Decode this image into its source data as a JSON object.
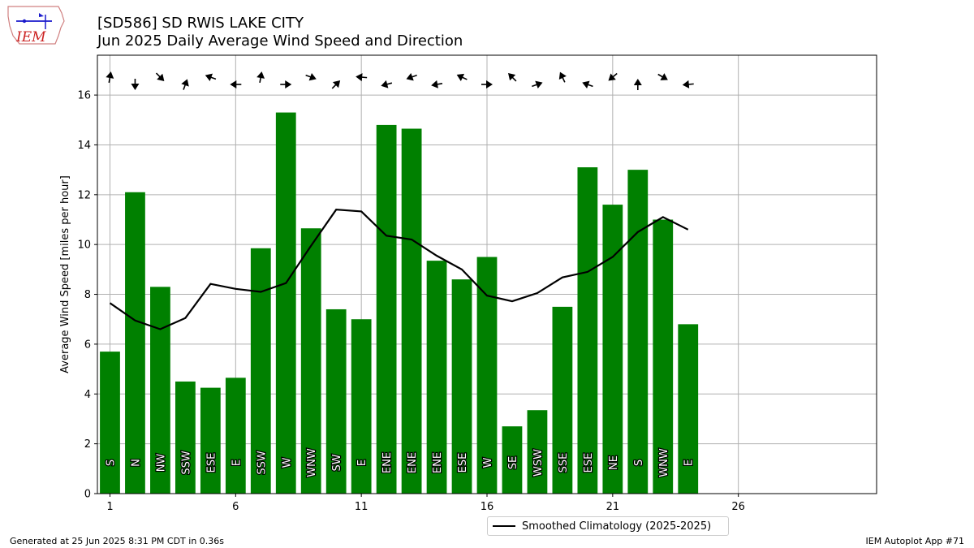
{
  "header": {
    "title_line1": "[SD586] SD RWIS LAKE CITY",
    "title_line2": "Jun 2025 Daily Average Wind Speed and Direction"
  },
  "logo": {
    "text": "IEM"
  },
  "footer": {
    "left": "Generated at 25 Jun 2025 8:31 PM CDT in 0.36s",
    "right": "IEM Autoplot App #71"
  },
  "legend": {
    "label": "Smoothed Climatology (2025-2025)"
  },
  "colors": {
    "bar": "#008000",
    "climatology": "#000000",
    "grid": "#b0b0b0"
  },
  "chart_data": {
    "type": "bar",
    "ylabel": "Average Wind Speed [miles per hour]",
    "xlabel": "",
    "xlim": [
      0.5,
      31.5
    ],
    "ylim": [
      0,
      17.6
    ],
    "xticks": [
      1,
      6,
      11,
      16,
      21,
      26
    ],
    "yticks": [
      0,
      2,
      4,
      6,
      8,
      10,
      12,
      14,
      16
    ],
    "grid": true,
    "legend_position": "bottom-center",
    "days": [
      1,
      2,
      3,
      4,
      5,
      6,
      7,
      8,
      9,
      10,
      11,
      12,
      13,
      14,
      15,
      16,
      17,
      18,
      19,
      20,
      21,
      22,
      23,
      24
    ],
    "speed": [
      5.7,
      12.1,
      8.3,
      4.5,
      4.25,
      4.65,
      9.85,
      15.3,
      10.65,
      7.4,
      7.0,
      14.8,
      14.65,
      9.35,
      8.6,
      9.5,
      2.7,
      3.35,
      7.5,
      13.1,
      11.6,
      13.0,
      11.0,
      6.8
    ],
    "direction_labels": [
      "S",
      "N",
      "NW",
      "SSW",
      "ESE",
      "E",
      "SSW",
      "W",
      "WNW",
      "SW",
      "E",
      "ENE",
      "ENE",
      "ENE",
      "ESE",
      "W",
      "SE",
      "WSW",
      "SSE",
      "ESE",
      "NE",
      "S",
      "WNW",
      "E"
    ],
    "direction_deg": [
      190,
      0,
      315,
      200,
      110,
      90,
      190,
      270,
      290,
      225,
      95,
      75,
      70,
      80,
      115,
      270,
      135,
      250,
      155,
      110,
      50,
      180,
      300,
      85
    ],
    "climatology": {
      "name": "Smoothed Climatology (2025-2025)",
      "values": [
        7.65,
        6.95,
        6.6,
        7.05,
        8.42,
        8.22,
        8.1,
        8.45,
        9.95,
        11.4,
        11.33,
        10.35,
        10.2,
        9.55,
        9.0,
        7.95,
        7.72,
        8.05,
        8.68,
        8.9,
        9.5,
        10.5,
        11.1,
        10.6
      ]
    }
  }
}
